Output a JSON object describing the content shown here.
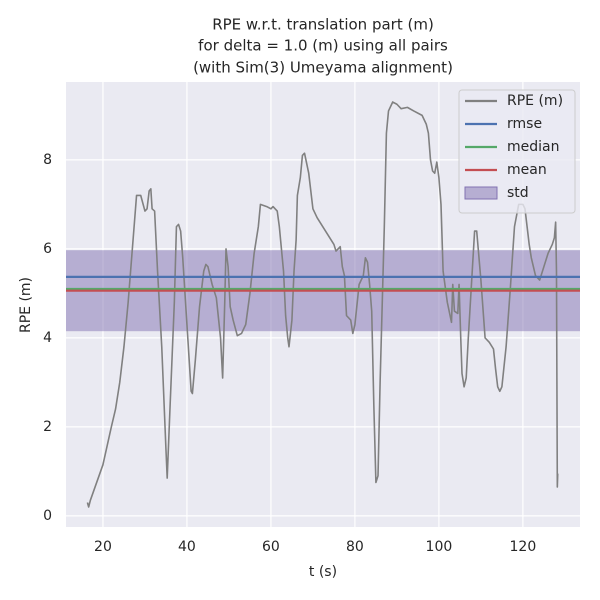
{
  "chart_data": {
    "type": "line",
    "title": [
      "RPE w.r.t. translation part (m)",
      "for delta = 1.0 (m) using all pairs",
      "(with Sim(3) Umeyama alignment)"
    ],
    "xlabel": "t (s)",
    "ylabel": "RPE (m)",
    "xlim": [
      11.2,
      133.6
    ],
    "ylim": [
      -0.25,
      9.75
    ],
    "xticks": [
      20,
      40,
      60,
      80,
      100,
      120
    ],
    "yticks": [
      0,
      2,
      4,
      6,
      8
    ],
    "grid": true,
    "legend": "upper right",
    "series": [
      {
        "name": "RPE (m)",
        "color": "#808080",
        "x": [
          16.3,
          16.6,
          17,
          20,
          22,
          23,
          24,
          25,
          26,
          27,
          28,
          29,
          30,
          30.5,
          31,
          31.4,
          31.7,
          32.3,
          33,
          34,
          35,
          35.3,
          36,
          37,
          37.5,
          38,
          38.5,
          39,
          40,
          41,
          41.3,
          42,
          43,
          44,
          44.5,
          45,
          46,
          47,
          48,
          48.5,
          49,
          49.3,
          49.8,
          50.3,
          51,
          52,
          53,
          54,
          55,
          56,
          57,
          57.5,
          59,
          60,
          60.5,
          61.5,
          62,
          63,
          63.5,
          64,
          64.3,
          65,
          65.5,
          66,
          66.3,
          67,
          67.5,
          68,
          69,
          70,
          71,
          73,
          75,
          75.5,
          76.5,
          77,
          77.5,
          78,
          79,
          79.5,
          80,
          81,
          82,
          82.5,
          83,
          83.5,
          84,
          84.5,
          85,
          85.5,
          86,
          87,
          87.5,
          88,
          89,
          90,
          91,
          92.5,
          94,
          96,
          97,
          97.5,
          98,
          98.5,
          99,
          99.5,
          100,
          100.5,
          101,
          102,
          103,
          103.3,
          103.7,
          104.5,
          104.8,
          105.2,
          105.5,
          106,
          106.5,
          107,
          108,
          108.5,
          109,
          110,
          111,
          112,
          113,
          113.5,
          114,
          114.5,
          115,
          116,
          117,
          118,
          119,
          120,
          120.5,
          121,
          121.5,
          122,
          123,
          124,
          125,
          126,
          127,
          127.5,
          127.8,
          128,
          128.2,
          128.3
        ],
        "values": [
          0.3,
          0.2,
          0.35,
          1.15,
          2.0,
          2.4,
          3.0,
          3.8,
          4.8,
          6.0,
          7.2,
          7.2,
          6.85,
          6.9,
          7.3,
          7.35,
          6.9,
          6.85,
          5.5,
          3.8,
          1.5,
          0.85,
          2.5,
          4.8,
          6.5,
          6.55,
          6.4,
          5.8,
          4.3,
          2.8,
          2.75,
          3.5,
          4.7,
          5.5,
          5.65,
          5.6,
          5.2,
          4.9,
          4.0,
          3.1,
          4.8,
          6.0,
          5.6,
          4.7,
          4.4,
          4.05,
          4.1,
          4.3,
          5.0,
          5.9,
          6.5,
          7.0,
          6.95,
          6.9,
          6.95,
          6.85,
          6.5,
          5.5,
          4.5,
          4.0,
          3.8,
          4.4,
          5.5,
          6.2,
          7.2,
          7.6,
          8.1,
          8.15,
          7.7,
          6.9,
          6.7,
          6.4,
          6.1,
          5.95,
          6.05,
          5.6,
          5.4,
          4.5,
          4.4,
          4.1,
          4.3,
          5.2,
          5.4,
          5.8,
          5.7,
          5.2,
          4.6,
          2.5,
          0.75,
          0.9,
          3.0,
          6.5,
          8.6,
          9.1,
          9.3,
          9.25,
          9.15,
          9.18,
          9.1,
          9.0,
          8.8,
          8.6,
          8.0,
          7.75,
          7.7,
          7.95,
          7.6,
          7.0,
          5.5,
          4.8,
          4.35,
          5.2,
          4.6,
          4.55,
          5.2,
          4.0,
          3.2,
          2.9,
          3.1,
          4.0,
          5.6,
          6.4,
          6.4,
          5.3,
          4.0,
          3.9,
          3.75,
          3.3,
          2.9,
          2.8,
          2.9,
          3.8,
          5.1,
          6.5,
          7.0,
          7.0,
          6.9,
          6.5,
          6.1,
          5.8,
          5.4,
          5.3,
          5.6,
          5.9,
          6.1,
          6.25,
          6.6,
          5.5,
          0.65,
          0.95
        ]
      }
    ],
    "reference_lines": [
      {
        "name": "rmse",
        "value": 5.37,
        "color": "#4c72b0"
      },
      {
        "name": "median",
        "value": 5.1,
        "color": "#55a868"
      },
      {
        "name": "mean",
        "value": 5.06,
        "color": "#c44e52"
      }
    ],
    "band": {
      "name": "std",
      "range": [
        4.15,
        5.97
      ],
      "color": "#8172b2"
    }
  }
}
